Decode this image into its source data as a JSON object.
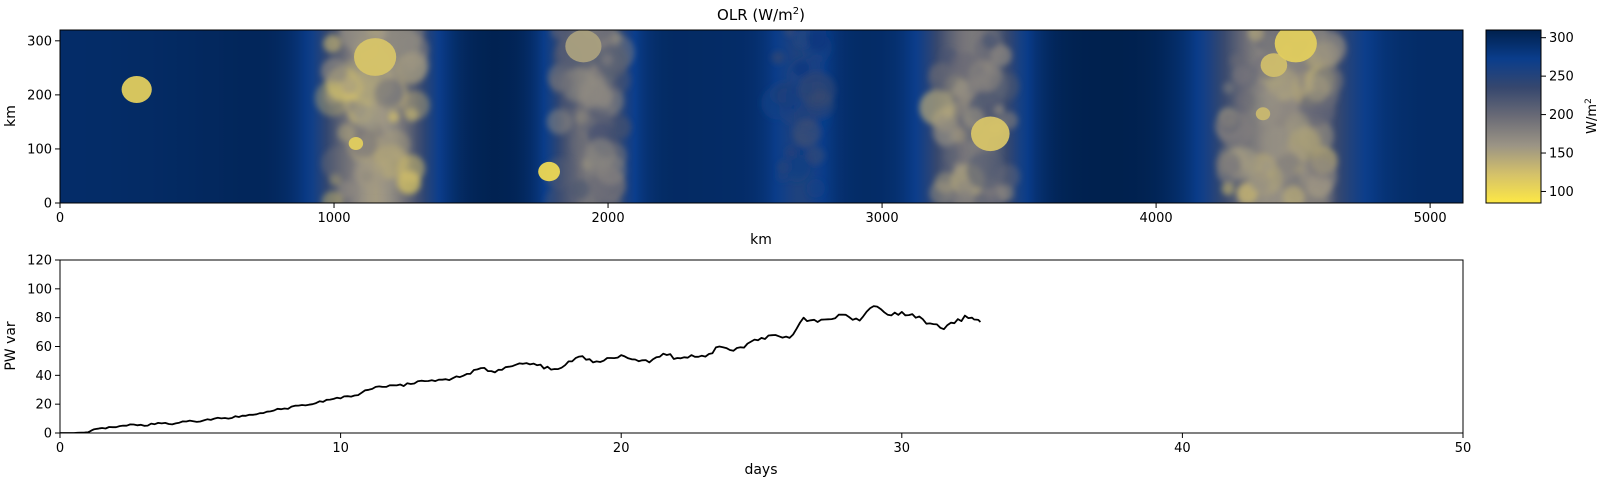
{
  "figure": {
    "top_panel": {
      "title_main": "OLR (W/m",
      "title_sup": "2",
      "title_end": ")",
      "xlabel": "km",
      "ylabel": "km",
      "xticks": [
        "0",
        "1000",
        "2000",
        "3000",
        "4000",
        "5000"
      ],
      "yticks": [
        "0",
        "100",
        "200",
        "300"
      ],
      "colorbar": {
        "label_main": "W/m",
        "label_sup": "2",
        "ticks": [
          "100",
          "150",
          "200",
          "250",
          "300"
        ],
        "colormap": "cividis",
        "colors": [
          "#fde845",
          "#d4c16a",
          "#9b9485",
          "#6a6b76",
          "#36476e",
          "#0a3d8c",
          "#00204d"
        ]
      }
    },
    "bottom_panel": {
      "xlabel": "days",
      "ylabel": "PW var",
      "xticks": [
        "0",
        "10",
        "20",
        "30",
        "40",
        "50"
      ],
      "yticks": [
        "0",
        "20",
        "40",
        "60",
        "80",
        "100",
        "120"
      ]
    }
  },
  "chart_data": [
    {
      "type": "heatmap",
      "title": "OLR (W/m²)",
      "xlabel": "km",
      "ylabel": "km",
      "xlim": [
        0,
        5120
      ],
      "ylim": [
        0,
        320
      ],
      "colorbar_label": "W/m²",
      "color_range": [
        85,
        310
      ],
      "colormap": "cividis",
      "convective_bands": [
        {
          "x_center": 1150,
          "width": 330,
          "min_olr": 115
        },
        {
          "x_center": 1930,
          "width": 240,
          "min_olr": 150
        },
        {
          "x_center": 2700,
          "width": 180,
          "min_olr": 215
        },
        {
          "x_center": 3330,
          "width": 290,
          "min_olr": 145
        },
        {
          "x_center": 4450,
          "width": 420,
          "min_olr": 125
        }
      ],
      "cells": [
        {
          "x": 280,
          "y": 210,
          "r": 25,
          "olr": 110
        },
        {
          "x": 1080,
          "y": 110,
          "r": 12,
          "olr": 110
        },
        {
          "x": 1150,
          "y": 270,
          "r": 35,
          "olr": 120
        },
        {
          "x": 1785,
          "y": 58,
          "r": 18,
          "olr": 100
        },
        {
          "x": 1910,
          "y": 290,
          "r": 30,
          "olr": 150
        },
        {
          "x": 3395,
          "y": 128,
          "r": 32,
          "olr": 120
        },
        {
          "x": 4390,
          "y": 165,
          "r": 12,
          "olr": 130
        },
        {
          "x": 4430,
          "y": 255,
          "r": 22,
          "olr": 125
        },
        {
          "x": 4510,
          "y": 295,
          "r": 35,
          "olr": 110
        }
      ]
    },
    {
      "type": "line",
      "xlabel": "days",
      "ylabel": "PW var",
      "xlim": [
        0,
        50
      ],
      "ylim": [
        0,
        120
      ],
      "series": [
        {
          "color": "#000000",
          "x": [
            0,
            0.5,
            1.0,
            1.2,
            1.5,
            2.0,
            2.5,
            3.0,
            3.5,
            4.0,
            4.5,
            5.0,
            5.5,
            6.0,
            6.5,
            7.0,
            7.5,
            8.0,
            8.5,
            9.0,
            9.5,
            10.0,
            10.5,
            11.0,
            11.5,
            12.0,
            12.5,
            13.0,
            13.5,
            14.0,
            14.5,
            15.0,
            15.5,
            16.0,
            16.5,
            17.0,
            17.5,
            18.0,
            18.5,
            19.0,
            19.5,
            20.0,
            20.5,
            21.0,
            21.5,
            22.0,
            22.5,
            23.0,
            23.5,
            24.0,
            24.5,
            25.0,
            25.5,
            26.0,
            26.5,
            27.0,
            27.5,
            28.0,
            28.5,
            29.0,
            29.5,
            30.0,
            30.5,
            31.0,
            31.5,
            32.0,
            32.5,
            32.8
          ],
          "y": [
            0,
            0,
            0.5,
            2.5,
            3.5,
            4,
            6,
            5,
            7,
            6,
            8,
            8,
            10,
            10,
            12,
            13,
            15,
            17,
            19,
            20,
            23,
            24,
            26,
            30,
            32,
            33,
            34,
            36,
            37,
            38,
            41,
            45,
            42,
            46,
            48,
            47,
            44,
            47,
            53,
            49,
            52,
            54,
            51,
            49,
            55,
            52,
            54,
            53,
            60,
            57,
            62,
            66,
            68,
            66,
            80,
            77,
            79,
            82,
            78,
            88,
            82,
            84,
            80,
            76,
            72,
            79,
            80,
            77
          ]
        }
      ]
    }
  ]
}
